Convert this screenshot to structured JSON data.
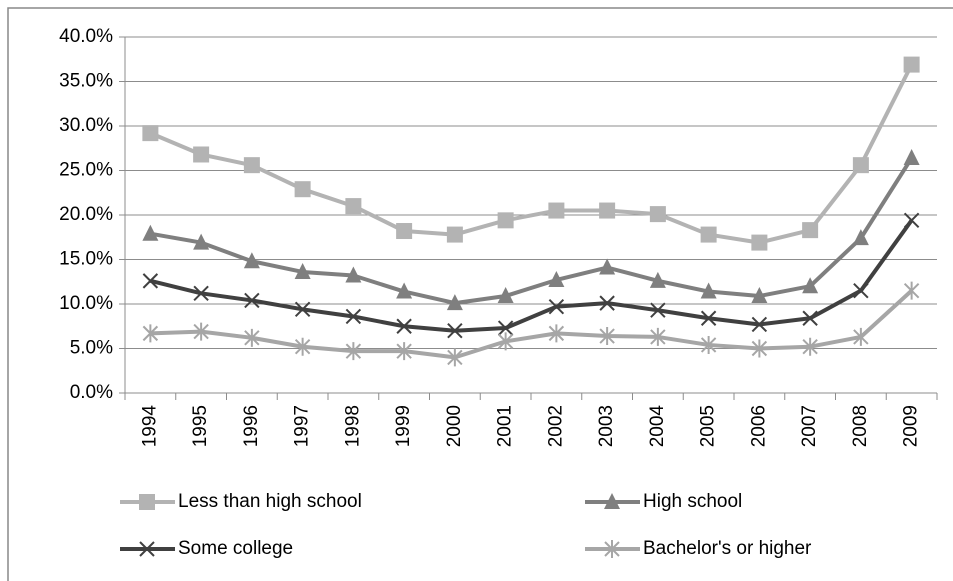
{
  "chart_data": {
    "type": "line",
    "categories": [
      "1994",
      "1995",
      "1996",
      "1997",
      "1998",
      "1999",
      "2000",
      "2001",
      "2002",
      "2003",
      "2004",
      "2005",
      "2006",
      "2007",
      "2008",
      "2009"
    ],
    "series": [
      {
        "name": "Less than high school",
        "color": "#b3b3b3",
        "marker": "square",
        "values": [
          29.2,
          26.8,
          25.6,
          22.9,
          21.0,
          18.2,
          17.8,
          19.4,
          20.5,
          20.5,
          20.1,
          17.8,
          16.9,
          18.3,
          25.6,
          36.9
        ]
      },
      {
        "name": "High school",
        "color": "#7f7f7f",
        "marker": "triangle",
        "values": [
          17.9,
          16.9,
          14.8,
          13.6,
          13.2,
          11.4,
          10.1,
          10.9,
          12.7,
          14.1,
          12.6,
          11.4,
          10.9,
          12.0,
          17.4,
          26.4
        ]
      },
      {
        "name": "Some college",
        "color": "#404040",
        "marker": "x",
        "values": [
          12.6,
          11.2,
          10.4,
          9.4,
          8.6,
          7.5,
          7.0,
          7.3,
          9.7,
          10.1,
          9.3,
          8.4,
          7.7,
          8.4,
          11.5,
          19.4
        ]
      },
      {
        "name": "Bachelor's or higher",
        "color": "#a6a6a6",
        "marker": "star",
        "values": [
          6.7,
          6.9,
          6.2,
          5.2,
          4.7,
          4.7,
          4.0,
          5.8,
          6.7,
          6.4,
          6.3,
          5.4,
          5.0,
          5.2,
          6.3,
          11.5
        ]
      }
    ],
    "ylim": [
      0,
      40
    ],
    "yticks": [
      {
        "value": 0,
        "label": "0.0%"
      },
      {
        "value": 5,
        "label": "5.0%"
      },
      {
        "value": 10,
        "label": "10.0%"
      },
      {
        "value": 15,
        "label": "15.0%"
      },
      {
        "value": 20,
        "label": "20.0%"
      },
      {
        "value": 25,
        "label": "25.0%"
      },
      {
        "value": 30,
        "label": "30.0%"
      },
      {
        "value": 35,
        "label": "35.0%"
      },
      {
        "value": 40,
        "label": "40.0%"
      }
    ],
    "grid": true
  }
}
